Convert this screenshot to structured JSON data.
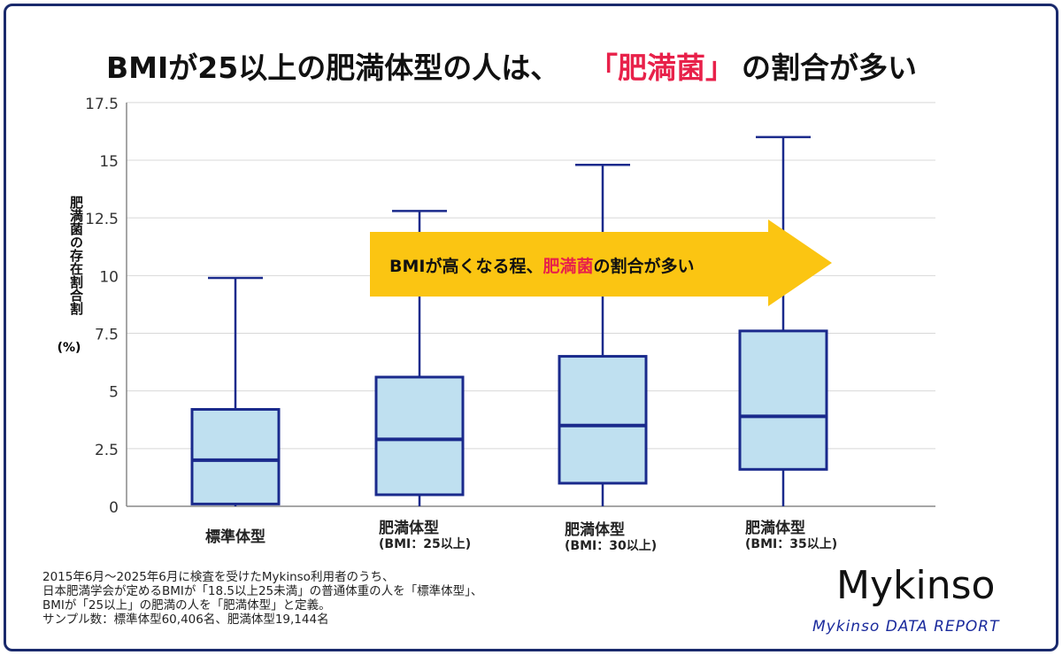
{
  "title": {
    "part1": "BMIが25以上の肥満体型の人は、",
    "highlight": "「肥満菌」",
    "part2": "の割合が多い"
  },
  "colors": {
    "box_fill": "#bfe0f0",
    "box_stroke": "#1a2a8c",
    "arrow": "#fbc512",
    "highlight": "#e8214a",
    "frame": "#1a2a6c"
  },
  "chart_data": {
    "type": "box",
    "ylabel": "肥満菌の存在割合割",
    "yunit": "(%)",
    "ylim": [
      0,
      17.5
    ],
    "yticks": [
      "0",
      "2.5",
      "5",
      "7.5",
      "10",
      "12.5",
      "15",
      "17.5"
    ],
    "grid": true,
    "categories": [
      {
        "label": "標準体型",
        "sublabel": ""
      },
      {
        "label": "肥満体型",
        "sublabel": "(BMI：25以上)"
      },
      {
        "label": "肥満体型",
        "sublabel": "(BMI：30以上)"
      },
      {
        "label": "肥満体型",
        "sublabel": "(BMI：35以上)"
      }
    ],
    "boxes": [
      {
        "min": 0,
        "q1": 0.1,
        "median": 2.0,
        "q3": 4.2,
        "max": 9.9
      },
      {
        "min": 0,
        "q1": 0.5,
        "median": 2.9,
        "q3": 5.6,
        "max": 12.8
      },
      {
        "min": 0,
        "q1": 1.0,
        "median": 3.5,
        "q3": 6.5,
        "max": 14.8
      },
      {
        "min": 0,
        "q1": 1.6,
        "median": 3.9,
        "q3": 7.6,
        "max": 16.0
      }
    ],
    "annotation": {
      "part1": "BMIが高くなる程、",
      "highlight": "肥満菌",
      "part2": "の割合が多い"
    }
  },
  "footnote": [
    "2015年6月～2025年6月に検査を受けたMykinso利用者のうち、",
    "日本肥満学会が定めるBMIが「18.5以上25未満」の普通体重の人を「標準体型」、",
    "BMIが「25以上」の肥満の人を「肥満体型」と定義。",
    "サンプル数：標準体型60,406名、肥満体型19,144名"
  ],
  "logo": {
    "name": "Mykinso",
    "subtitle": "Mykinso DATA REPORT"
  }
}
